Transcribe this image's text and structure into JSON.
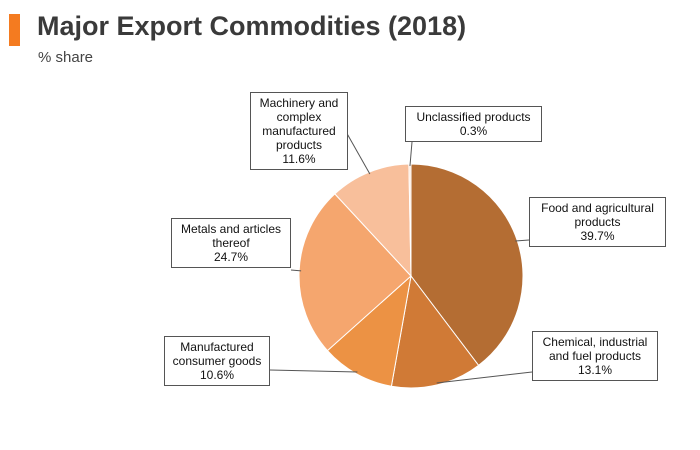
{
  "header": {
    "title": "Major Export Commodities (2018)",
    "subtitle": "% share",
    "accent_color": "#f47b20"
  },
  "chart_data": {
    "type": "pie",
    "title": "Major Export Commodities (2018)",
    "subtitle": "% share",
    "unit": "%",
    "slices": [
      {
        "label": "Food and agricultural products",
        "value": 39.7,
        "value_label": "39.7%",
        "color": "#b46d33"
      },
      {
        "label": "Chemical, industrial and fuel products",
        "value": 13.1,
        "value_label": "13.1%",
        "color": "#d07a36"
      },
      {
        "label": "Manufactured consumer goods",
        "value": 10.6,
        "value_label": "10.6%",
        "color": "#ec9244"
      },
      {
        "label": "Metals and articles thereof",
        "value": 24.7,
        "value_label": "24.7%",
        "color": "#f5a66e"
      },
      {
        "label": "Machinery and complex manufactured products",
        "value": 11.6,
        "value_label": "11.6%",
        "color": "#f8bf9b"
      },
      {
        "label": "Unclassified products",
        "value": 0.3,
        "value_label": "0.3%",
        "color": "#fbe3d3"
      }
    ]
  }
}
